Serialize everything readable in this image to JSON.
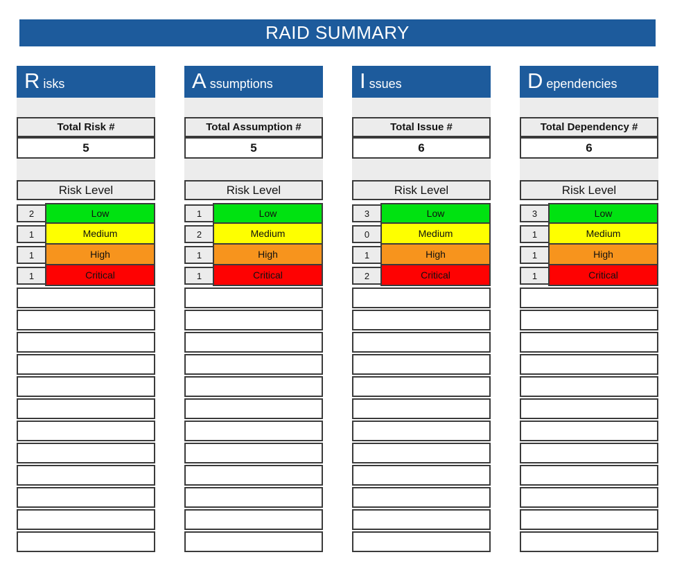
{
  "title": "RAID SUMMARY",
  "palette": {
    "banner_blue": "#1d5b9c",
    "header_blue": "#1d5b9c",
    "cell_gray": "#ececec",
    "grid_border": "#3a3a3a",
    "level_colors": {
      "Low": "#00e211",
      "Medium": "#feff00",
      "High": "#f7941d",
      "Critical": "#fe0202"
    }
  },
  "columns": [
    {
      "id": "risks",
      "letter": "R",
      "rest": "isks",
      "total_label": "Total Risk #",
      "total_value": "5",
      "level_header": "Risk Level",
      "levels": [
        {
          "count": "2",
          "label": "Low"
        },
        {
          "count": "1",
          "label": "Medium"
        },
        {
          "count": "1",
          "label": "High"
        },
        {
          "count": "1",
          "label": "Critical"
        }
      ],
      "empty_rows": 12
    },
    {
      "id": "assumptions",
      "letter": "A",
      "rest": "ssumptions",
      "total_label": "Total Assumption #",
      "total_value": "5",
      "level_header": "Risk Level",
      "levels": [
        {
          "count": "1",
          "label": "Low"
        },
        {
          "count": "2",
          "label": "Medium"
        },
        {
          "count": "1",
          "label": "High"
        },
        {
          "count": "1",
          "label": "Critical"
        }
      ],
      "empty_rows": 12
    },
    {
      "id": "issues",
      "letter": "I",
      "rest": "ssues",
      "total_label": "Total Issue #",
      "total_value": "6",
      "level_header": "Risk Level",
      "levels": [
        {
          "count": "3",
          "label": "Low"
        },
        {
          "count": "0",
          "label": "Medium"
        },
        {
          "count": "1",
          "label": "High"
        },
        {
          "count": "2",
          "label": "Critical"
        }
      ],
      "empty_rows": 12
    },
    {
      "id": "dependencies",
      "letter": "D",
      "rest": "ependencies",
      "total_label": "Total Dependency #",
      "total_value": "6",
      "level_header": "Risk Level",
      "levels": [
        {
          "count": "3",
          "label": "Low"
        },
        {
          "count": "1",
          "label": "Medium"
        },
        {
          "count": "1",
          "label": "High"
        },
        {
          "count": "1",
          "label": "Critical"
        }
      ],
      "empty_rows": 12
    }
  ]
}
